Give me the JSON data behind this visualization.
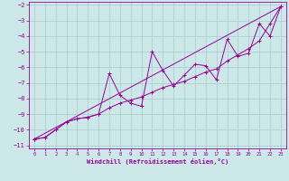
{
  "xlabel": "Windchill (Refroidissement éolien,°C)",
  "bg_color": "#cce8e8",
  "grid_color": "#aacccc",
  "line_color": "#990099",
  "xlim": [
    -0.5,
    23.5
  ],
  "ylim": [
    -11.2,
    -1.8
  ],
  "xticks": [
    0,
    1,
    2,
    3,
    4,
    5,
    6,
    7,
    8,
    9,
    10,
    11,
    12,
    13,
    14,
    15,
    16,
    17,
    18,
    19,
    20,
    21,
    22,
    23
  ],
  "yticks": [
    -11,
    -10,
    -9,
    -8,
    -7,
    -6,
    -5,
    -4,
    -3,
    -2
  ],
  "series1": [
    [
      0,
      -10.6
    ],
    [
      1,
      -10.5
    ],
    [
      2,
      -10.0
    ],
    [
      3,
      -9.5
    ],
    [
      4,
      -9.3
    ],
    [
      5,
      -9.2
    ],
    [
      6,
      -9.0
    ],
    [
      7,
      -6.4
    ],
    [
      8,
      -7.8
    ],
    [
      9,
      -8.3
    ],
    [
      10,
      -8.5
    ],
    [
      11,
      -5.0
    ],
    [
      12,
      -6.2
    ],
    [
      13,
      -7.2
    ],
    [
      14,
      -6.5
    ],
    [
      15,
      -5.8
    ],
    [
      16,
      -5.9
    ],
    [
      17,
      -6.8
    ],
    [
      18,
      -4.2
    ],
    [
      19,
      -5.3
    ],
    [
      20,
      -5.1
    ],
    [
      21,
      -3.2
    ],
    [
      22,
      -4.0
    ],
    [
      23,
      -2.1
    ]
  ],
  "series2": [
    [
      0,
      -10.6
    ],
    [
      1,
      -10.5
    ],
    [
      2,
      -10.0
    ],
    [
      3,
      -9.5
    ],
    [
      4,
      -9.3
    ],
    [
      5,
      -9.2
    ],
    [
      6,
      -9.0
    ],
    [
      7,
      -8.6
    ],
    [
      8,
      -8.3
    ],
    [
      9,
      -8.1
    ],
    [
      10,
      -7.9
    ],
    [
      11,
      -7.6
    ],
    [
      12,
      -7.3
    ],
    [
      13,
      -7.1
    ],
    [
      14,
      -6.9
    ],
    [
      15,
      -6.6
    ],
    [
      16,
      -6.3
    ],
    [
      17,
      -6.1
    ],
    [
      18,
      -5.6
    ],
    [
      19,
      -5.2
    ],
    [
      20,
      -4.8
    ],
    [
      21,
      -4.3
    ],
    [
      22,
      -3.2
    ],
    [
      23,
      -2.1
    ]
  ],
  "series3": [
    [
      0,
      -10.6
    ],
    [
      23,
      -2.1
    ]
  ]
}
